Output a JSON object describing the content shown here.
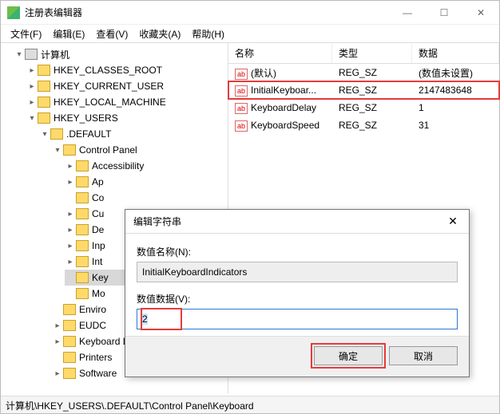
{
  "window": {
    "title": "注册表编辑器"
  },
  "menu": {
    "file": "文件(F)",
    "edit": "编辑(E)",
    "view": "查看(V)",
    "favorites": "收藏夹(A)",
    "help": "帮助(H)"
  },
  "tree": {
    "root": "计算机",
    "hkcr": "HKEY_CLASSES_ROOT",
    "hkcu": "HKEY_CURRENT_USER",
    "hklm": "HKEY_LOCAL_MACHINE",
    "hku": "HKEY_USERS",
    "default": ".DEFAULT",
    "cp": "Control Panel",
    "acc": "Accessibility",
    "app": "Ap",
    "col": "Co",
    "cur": "Cu",
    "des": "De",
    "inp": "Inp",
    "int": "Int",
    "key": "Key",
    "mo": "Mo",
    "env": "Enviro",
    "eudc": "EUDC",
    "kbl": "Keyboard Layout",
    "pr": "Printers",
    "sw": "Software"
  },
  "list": {
    "hdr_name": "名称",
    "hdr_type": "类型",
    "hdr_data": "数据",
    "rows": [
      {
        "name": "(默认)",
        "type": "REG_SZ",
        "data": "(数值未设置)"
      },
      {
        "name": "InitialKeyboar...",
        "type": "REG_SZ",
        "data": "2147483648"
      },
      {
        "name": "KeyboardDelay",
        "type": "REG_SZ",
        "data": "1"
      },
      {
        "name": "KeyboardSpeed",
        "type": "REG_SZ",
        "data": "31"
      }
    ]
  },
  "dialog": {
    "title": "编辑字符串",
    "name_label": "数值名称(N):",
    "name_value": "InitialKeyboardIndicators",
    "data_label": "数值数据(V):",
    "data_value": "2",
    "ok": "确定",
    "cancel": "取消"
  },
  "statusbar": "计算机\\HKEY_USERS\\.DEFAULT\\Control Panel\\Keyboard"
}
